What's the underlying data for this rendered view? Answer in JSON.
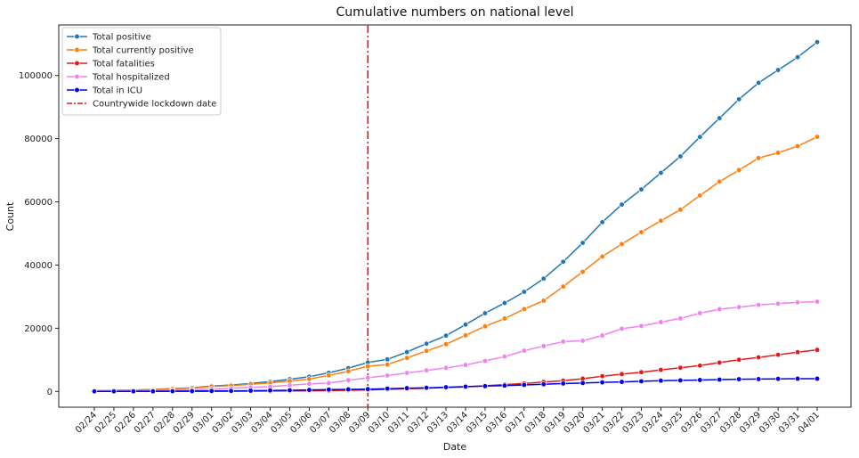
{
  "chart_data": {
    "type": "line",
    "title": "Cumulative numbers on national level",
    "xlabel": "Date",
    "ylabel": "Count",
    "ylim": [
      -5000,
      116000
    ],
    "yticks": [
      0,
      20000,
      40000,
      60000,
      80000,
      100000
    ],
    "ytick_labels": [
      "0",
      "20000",
      "40000",
      "60000",
      "80000",
      "100000"
    ],
    "grid": false,
    "legend_position": "top-left",
    "categories": [
      "02/24",
      "02/25",
      "02/26",
      "02/27",
      "02/28",
      "02/29",
      "03/01",
      "03/02",
      "03/03",
      "03/04",
      "03/05",
      "03/06",
      "03/07",
      "03/08",
      "03/09",
      "03/10",
      "03/11",
      "03/12",
      "03/13",
      "03/14",
      "03/15",
      "03/16",
      "03/17",
      "03/18",
      "03/19",
      "03/20",
      "03/21",
      "03/22",
      "03/23",
      "03/24",
      "03/25",
      "03/26",
      "03/27",
      "03/28",
      "03/29",
      "03/30",
      "03/31",
      "04/01"
    ],
    "series": [
      {
        "name": "Total positive",
        "color": "#1f77b4",
        "values": [
          229,
          322,
          400,
          650,
          888,
          1128,
          1694,
          2036,
          2502,
          3089,
          3858,
          4636,
          5883,
          7375,
          9172,
          10149,
          12462,
          15113,
          17660,
          21157,
          24747,
          27980,
          31506,
          35713,
          41035,
          47021,
          53578,
          59138,
          63927,
          69176,
          74386,
          80539,
          86498,
          92472,
          97689,
          101739,
          105792,
          110574
        ]
      },
      {
        "name": "Total currently positive",
        "color": "#ff7f0e",
        "values": [
          221,
          311,
          385,
          588,
          821,
          1049,
          1577,
          1835,
          2263,
          2706,
          3296,
          3916,
          5061,
          6387,
          7985,
          8514,
          10590,
          12839,
          14955,
          17750,
          20603,
          23073,
          26062,
          28710,
          33190,
          37860,
          42681,
          46638,
          50418,
          54030,
          57521,
          62013,
          66414,
          70065,
          73880,
          75528,
          77635,
          80572
        ]
      },
      {
        "name": "Total fatalities",
        "color": "#e31a1c",
        "values": [
          7,
          10,
          12,
          17,
          21,
          29,
          34,
          52,
          79,
          107,
          148,
          197,
          233,
          366,
          463,
          631,
          827,
          1016,
          1266,
          1441,
          1809,
          2158,
          2503,
          2978,
          3405,
          4032,
          4825,
          5476,
          6077,
          6820,
          7503,
          8165,
          9134,
          10023,
          10779,
          11591,
          12428,
          13155
        ]
      },
      {
        "name": "Total hospitalized",
        "color": "#ee82ee",
        "values": [
          127,
          150,
          164,
          304,
          409,
          506,
          750,
          938,
          1263,
          1514,
          1935,
          2394,
          2650,
          3557,
          4316,
          5038,
          5838,
          6650,
          7426,
          8372,
          9663,
          11025,
          12894,
          14363,
          15757,
          16020,
          17708,
          19846,
          20692,
          21937,
          23112,
          24753,
          26029,
          26676,
          27386,
          27795,
          28192,
          28403
        ]
      },
      {
        "name": "Total in ICU",
        "color": "#0000ee",
        "values": [
          26,
          27,
          35,
          36,
          64,
          105,
          140,
          166,
          229,
          295,
          351,
          462,
          567,
          650,
          733,
          877,
          1028,
          1153,
          1328,
          1518,
          1672,
          1851,
          2060,
          2257,
          2498,
          2655,
          2857,
          3009,
          3204,
          3396,
          3489,
          3612,
          3732,
          3856,
          3906,
          3981,
          4023,
          4035
        ]
      }
    ],
    "lockdown": {
      "name": "Countrywide lockdown date",
      "category": "03/09",
      "color": "#e31a1c"
    }
  }
}
